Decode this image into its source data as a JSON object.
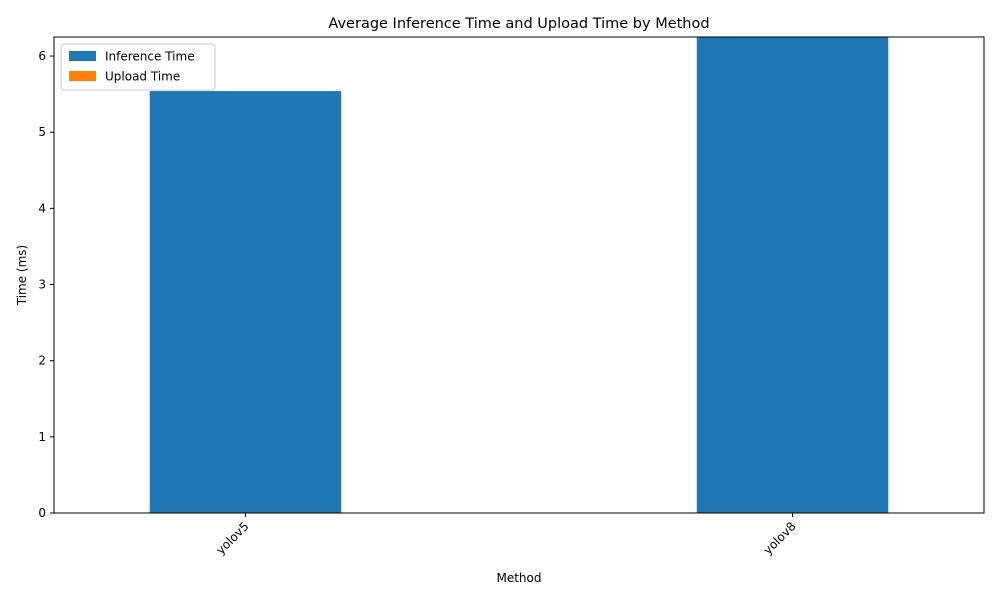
{
  "chart_data": {
    "type": "bar",
    "title": "Average Inference Time and Upload Time by Method",
    "xlabel": "Method",
    "ylabel": "Time (ms)",
    "categories": [
      "yolov5",
      "yolov8"
    ],
    "series": [
      {
        "name": "Inference Time",
        "color": "#1f77b4",
        "values": [
          5.54,
          6.25
        ]
      },
      {
        "name": "Upload Time",
        "color": "#ff7f0e",
        "values": [
          0,
          0
        ]
      }
    ],
    "ylim": [
      0,
      6.25
    ],
    "yticks": [
      0,
      1,
      2,
      3,
      4,
      5,
      6
    ],
    "legend": "top-left",
    "grid": false,
    "xtick_rotation": 45
  }
}
